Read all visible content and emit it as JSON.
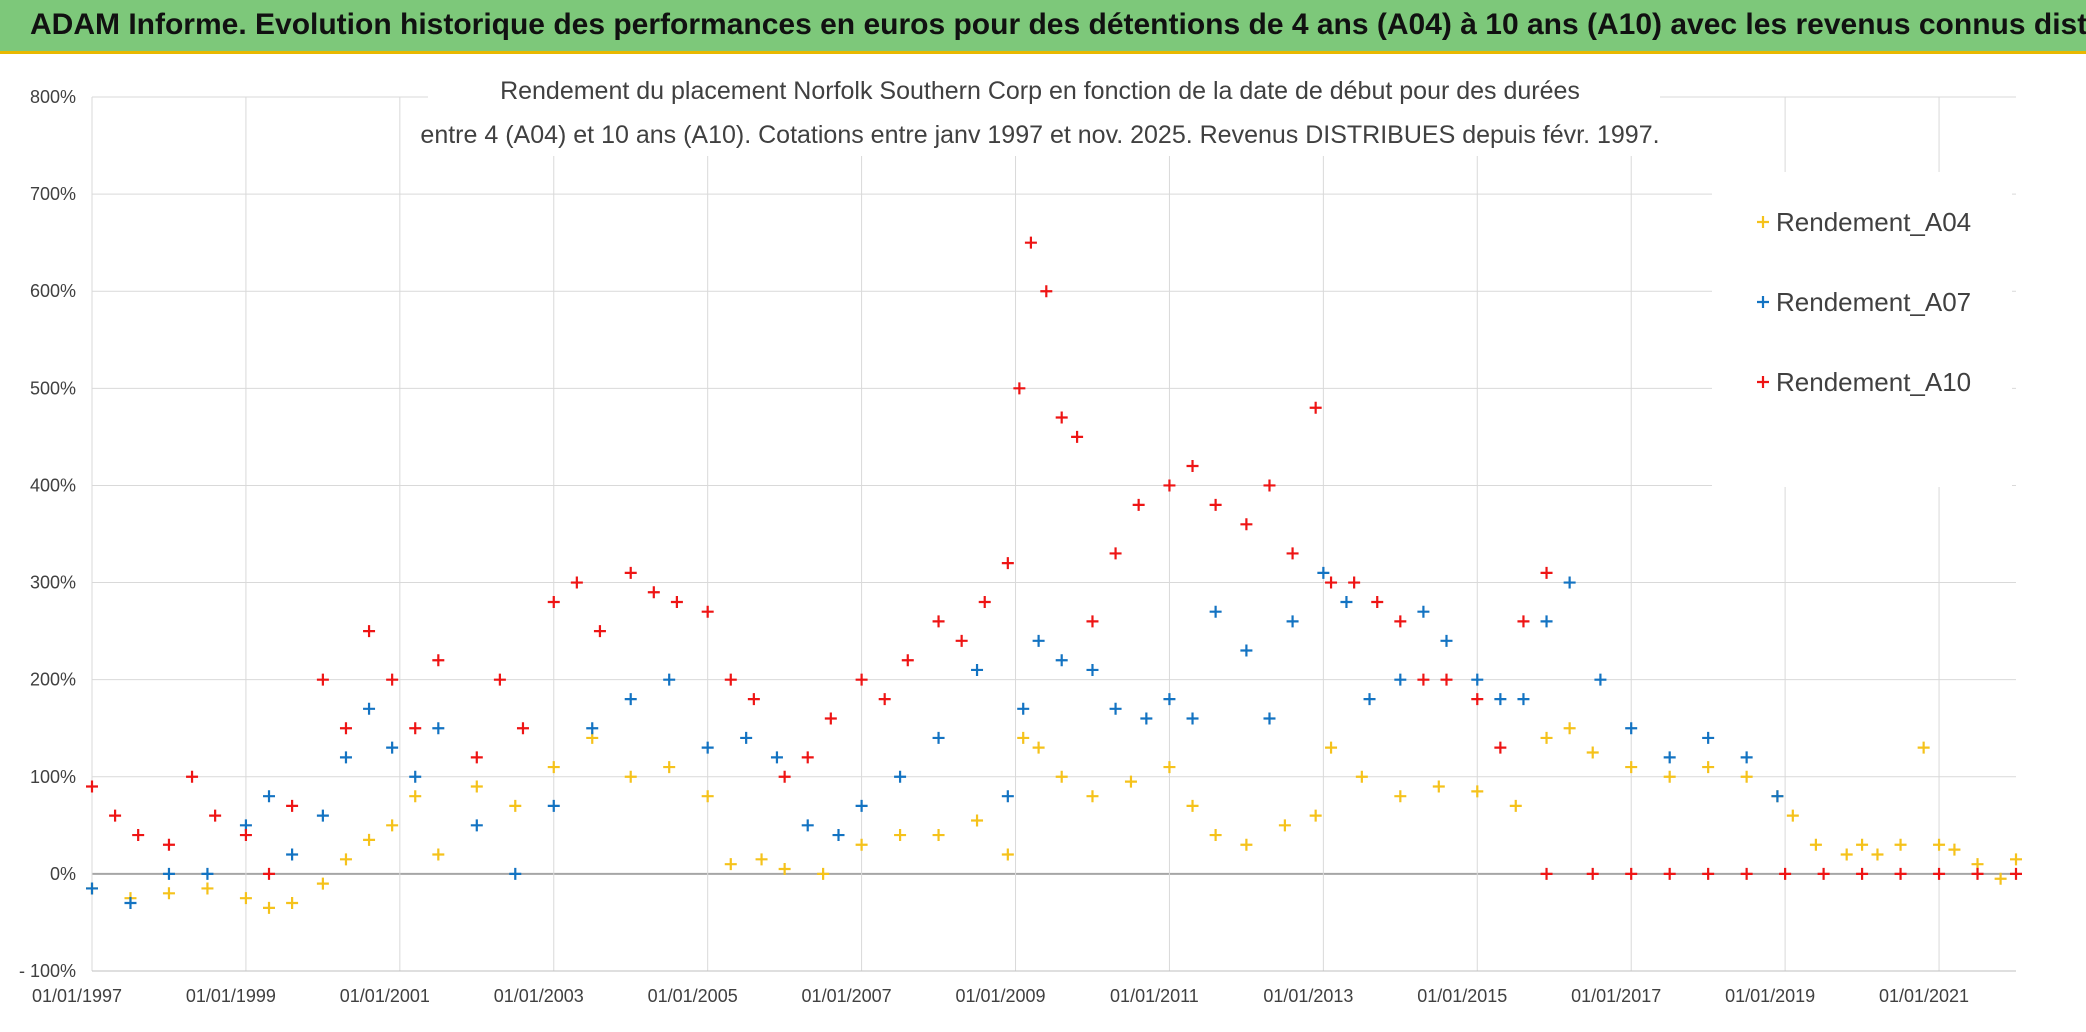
{
  "banner": {
    "text": "ADAM Informe. Evolution historique des performances en euros pour des détentions de 4 ans (A04) à 10 ans (A10) avec les revenus connus distribués"
  },
  "chart_data": {
    "type": "scatter",
    "title_line1": "Rendement du placement Norfolk Southern Corp en fonction de la date de début pour des durées",
    "title_line2": "entre 4 (A04) et 10 ans (A10). Cotations entre janv 1997 et nov. 2025. Revenus DISTRIBUES depuis févr. 1997.",
    "xlim": [
      1997.0,
      2022.0
    ],
    "ylim": [
      -100,
      800
    ],
    "x_tick_labels": [
      "01/01/1997",
      "01/01/1999",
      "01/01/2001",
      "01/01/2003",
      "01/01/2005",
      "01/01/2007",
      "01/01/2009",
      "01/01/2011",
      "01/01/2013",
      "01/01/2015",
      "01/01/2017",
      "01/01/2019",
      "01/01/2021"
    ],
    "y_tick_labels": [
      "- 100%",
      "0%",
      "100%",
      "200%",
      "300%",
      "400%",
      "500%",
      "600%",
      "700%",
      "800%"
    ],
    "legend_position": "top-right",
    "series": [
      {
        "name": "Rendement_A04",
        "color": "#f5c21b",
        "x": [
          1997.0,
          1997.5,
          1998.0,
          1998.5,
          1999.0,
          1999.3,
          1999.6,
          2000.0,
          2000.3,
          2000.6,
          2000.9,
          2001.2,
          2001.5,
          2002.0,
          2002.5,
          2003.0,
          2003.5,
          2004.0,
          2004.5,
          2005.0,
          2005.3,
          2005.7,
          2006.0,
          2006.5,
          2007.0,
          2007.5,
          2008.0,
          2008.5,
          2008.9,
          2009.1,
          2009.3,
          2009.6,
          2010.0,
          2010.5,
          2011.0,
          2011.3,
          2011.6,
          2012.0,
          2012.5,
          2012.9,
          2013.1,
          2013.5,
          2014.0,
          2014.5,
          2015.0,
          2015.5,
          2015.9,
          2016.2,
          2016.5,
          2017.0,
          2017.5,
          2018.0,
          2018.5,
          2018.9,
          2019.1,
          2019.4,
          2019.8,
          2020.0,
          2020.2,
          2020.5,
          2020.8,
          2021.0,
          2021.2,
          2021.5,
          2021.8,
          2022.0
        ],
        "y": [
          -15,
          -25,
          -20,
          -15,
          -25,
          -35,
          -30,
          -10,
          15,
          35,
          50,
          80,
          20,
          90,
          70,
          110,
          140,
          100,
          110,
          80,
          10,
          15,
          5,
          0,
          30,
          40,
          40,
          55,
          20,
          140,
          130,
          100,
          80,
          95,
          110,
          70,
          40,
          30,
          50,
          60,
          130,
          100,
          80,
          90,
          85,
          70,
          140,
          150,
          125,
          110,
          100,
          110,
          100,
          80,
          60,
          30,
          20,
          30,
          20,
          30,
          130,
          30,
          25,
          10,
          -5,
          15
        ]
      },
      {
        "name": "Rendement_A07",
        "color": "#1373c2",
        "x": [
          1997.0,
          1997.5,
          1998.0,
          1998.5,
          1999.0,
          1999.3,
          1999.6,
          2000.0,
          2000.3,
          2000.6,
          2000.9,
          2001.2,
          2001.5,
          2002.0,
          2002.5,
          2003.0,
          2003.5,
          2004.0,
          2004.5,
          2005.0,
          2005.5,
          2005.9,
          2006.3,
          2006.7,
          2007.0,
          2007.5,
          2008.0,
          2008.5,
          2008.9,
          2009.1,
          2009.3,
          2009.6,
          2010.0,
          2010.3,
          2010.7,
          2011.0,
          2011.3,
          2011.6,
          2012.0,
          2012.3,
          2012.6,
          2013.0,
          2013.3,
          2013.6,
          2014.0,
          2014.3,
          2014.6,
          2015.0,
          2015.3,
          2015.6,
          2015.9,
          2016.2,
          2016.6,
          2017.0,
          2017.5,
          2018.0,
          2018.5,
          2018.9
        ],
        "y": [
          -15,
          -30,
          0,
          0,
          50,
          80,
          20,
          60,
          120,
          170,
          130,
          100,
          150,
          50,
          0,
          70,
          150,
          180,
          200,
          130,
          140,
          120,
          50,
          40,
          70,
          100,
          140,
          210,
          80,
          170,
          240,
          220,
          210,
          170,
          160,
          180,
          160,
          270,
          230,
          160,
          260,
          310,
          280,
          180,
          200,
          270,
          240,
          200,
          180,
          180,
          260,
          300,
          200,
          150,
          120,
          140,
          120,
          80
        ]
      },
      {
        "name": "Rendement_A10",
        "color": "#ee1414",
        "x": [
          1997.0,
          1997.3,
          1997.6,
          1998.0,
          1998.3,
          1998.6,
          1999.0,
          1999.3,
          1999.6,
          2000.0,
          2000.3,
          2000.6,
          2000.9,
          2001.2,
          2001.5,
          2002.0,
          2002.3,
          2002.6,
          2003.0,
          2003.3,
          2003.6,
          2004.0,
          2004.3,
          2004.6,
          2005.0,
          2005.3,
          2005.6,
          2006.0,
          2006.3,
          2006.6,
          2007.0,
          2007.3,
          2007.6,
          2008.0,
          2008.3,
          2008.6,
          2008.9,
          2009.05,
          2009.2,
          2009.4,
          2009.6,
          2009.8,
          2010.0,
          2010.3,
          2010.6,
          2011.0,
          2011.3,
          2011.6,
          2012.0,
          2012.3,
          2012.6,
          2012.9,
          2013.1,
          2013.4,
          2013.7,
          2014.0,
          2014.3,
          2014.6,
          2015.0,
          2015.3,
          2015.6,
          2015.9
        ],
        "y": [
          90,
          60,
          40,
          30,
          100,
          60,
          40,
          0,
          70,
          200,
          150,
          250,
          200,
          150,
          220,
          120,
          200,
          150,
          280,
          300,
          250,
          310,
          290,
          280,
          270,
          200,
          180,
          100,
          120,
          160,
          200,
          180,
          220,
          260,
          240,
          280,
          320,
          500,
          650,
          600,
          470,
          450,
          260,
          330,
          380,
          400,
          420,
          380,
          360,
          400,
          330,
          480,
          300,
          300,
          280,
          260,
          200,
          200,
          180,
          130,
          260,
          310
        ]
      },
      {
        "name": "Rendement_A10",
        "color": "#ee1414",
        "x": [
          2015.9,
          2016.5,
          2017.0,
          2017.5,
          2018.0,
          2018.5,
          2019.0,
          2019.5,
          2020.0,
          2020.5,
          2021.0,
          2021.5,
          2022.0
        ],
        "y": [
          0,
          0,
          0,
          0,
          0,
          0,
          0,
          0,
          0,
          0,
          0,
          0,
          0
        ]
      }
    ]
  }
}
